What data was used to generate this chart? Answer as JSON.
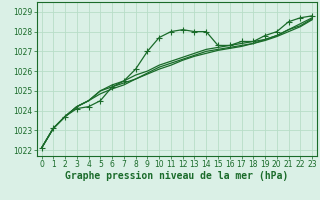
{
  "title": "Graphe pression niveau de la mer (hPa)",
  "bg_color": "#daf0e6",
  "grid_color": "#b8ddc8",
  "line_color": "#1a6b2a",
  "text_color": "#1a6b2a",
  "x_ticks": [
    0,
    1,
    2,
    3,
    4,
    5,
    6,
    7,
    8,
    9,
    10,
    11,
    12,
    13,
    14,
    15,
    16,
    17,
    18,
    19,
    20,
    21,
    22,
    23
  ],
  "y_ticks": [
    1022,
    1023,
    1024,
    1025,
    1026,
    1027,
    1028,
    1029
  ],
  "ylim": [
    1021.7,
    1029.5
  ],
  "xlim": [
    -0.4,
    23.4
  ],
  "series": [
    [
      1022.1,
      1023.1,
      1023.7,
      1024.1,
      1024.2,
      1024.5,
      1025.2,
      1025.5,
      1026.1,
      1027.0,
      1027.7,
      1028.0,
      1028.1,
      1028.0,
      1028.0,
      1027.3,
      1027.3,
      1027.5,
      1027.5,
      1027.8,
      1028.0,
      1028.5,
      1028.7,
      1028.8
    ],
    [
      1022.1,
      1023.1,
      1023.7,
      1024.2,
      1024.5,
      1025.0,
      1025.3,
      1025.5,
      1025.8,
      1026.0,
      1026.3,
      1026.5,
      1026.7,
      1026.9,
      1027.1,
      1027.2,
      1027.3,
      1027.4,
      1027.5,
      1027.6,
      1027.8,
      1028.1,
      1028.4,
      1028.7
    ],
    [
      1022.1,
      1023.1,
      1023.7,
      1024.2,
      1024.5,
      1025.0,
      1025.2,
      1025.4,
      1025.6,
      1025.9,
      1026.2,
      1026.4,
      1026.6,
      1026.8,
      1027.0,
      1027.1,
      1027.2,
      1027.3,
      1027.4,
      1027.6,
      1027.8,
      1028.1,
      1028.3,
      1028.65
    ],
    [
      1022.1,
      1023.1,
      1023.7,
      1024.2,
      1024.5,
      1024.85,
      1025.1,
      1025.3,
      1025.6,
      1025.85,
      1026.1,
      1026.3,
      1026.55,
      1026.75,
      1026.9,
      1027.05,
      1027.15,
      1027.25,
      1027.4,
      1027.55,
      1027.75,
      1028.0,
      1028.25,
      1028.6
    ]
  ],
  "marker": "+",
  "markersize": 4,
  "linewidth": 0.9,
  "title_fontsize": 7,
  "tick_fontsize": 5.5
}
